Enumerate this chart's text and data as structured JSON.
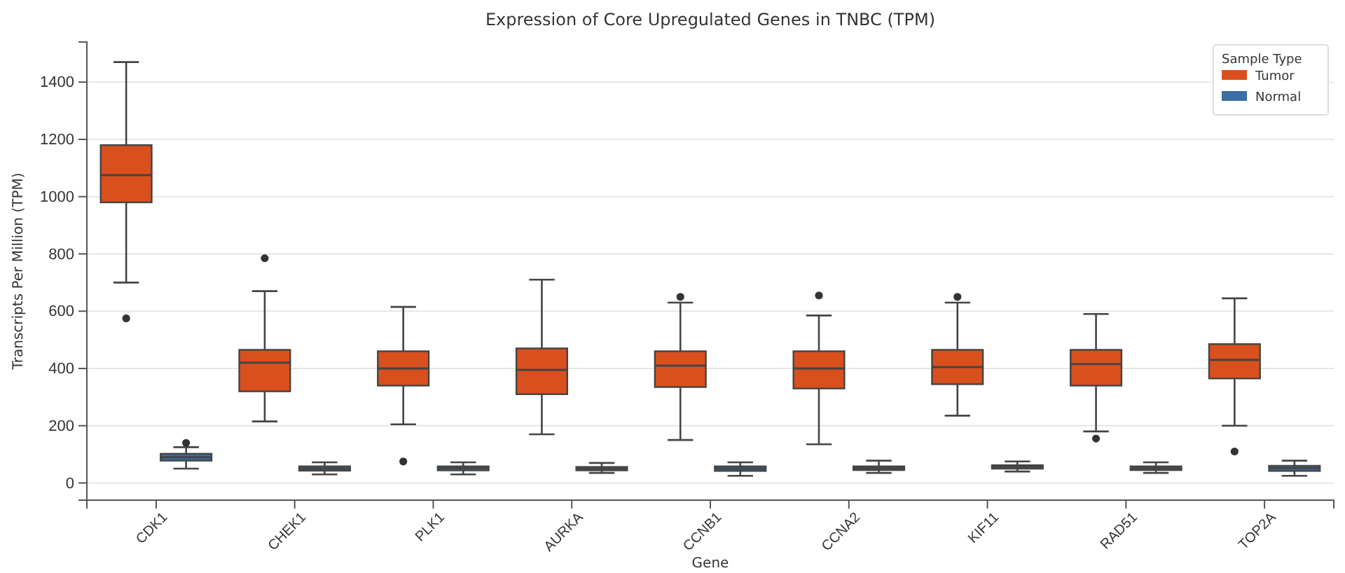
{
  "chart_data": {
    "type": "box",
    "title": "Expression of Core Upregulated Genes in TNBC (TPM)",
    "xlabel": "Gene",
    "ylabel": "Transcripts Per Million (TPM)",
    "legend_title": "Sample Type",
    "legend": "top right",
    "grid": "y",
    "categories": [
      "CDK1",
      "CHEK1",
      "PLK1",
      "AURKA",
      "CCNB1",
      "CCNA2",
      "KIF11",
      "RAD51",
      "TOP2A"
    ],
    "ylim": [
      -60,
      1540
    ],
    "yticks": [
      0,
      200,
      400,
      600,
      800,
      1000,
      1200,
      1400
    ],
    "series": [
      {
        "name": "Tumor",
        "color": "#d9501e",
        "boxes": [
          {
            "low": 700,
            "q1": 980,
            "median": 1075,
            "q3": 1180,
            "high": 1470,
            "outliers": [
              575
            ]
          },
          {
            "low": 215,
            "q1": 320,
            "median": 420,
            "q3": 465,
            "high": 670,
            "outliers": [
              785
            ]
          },
          {
            "low": 205,
            "q1": 340,
            "median": 400,
            "q3": 460,
            "high": 615,
            "outliers": [
              75
            ]
          },
          {
            "low": 170,
            "q1": 310,
            "median": 395,
            "q3": 470,
            "high": 710
          },
          {
            "low": 150,
            "q1": 335,
            "median": 410,
            "q3": 460,
            "high": 630,
            "outliers": [
              650
            ]
          },
          {
            "low": 135,
            "q1": 330,
            "median": 400,
            "q3": 460,
            "high": 585,
            "outliers": [
              655
            ]
          },
          {
            "low": 235,
            "q1": 345,
            "median": 405,
            "q3": 465,
            "high": 630,
            "outliers": [
              650
            ]
          },
          {
            "low": 180,
            "q1": 340,
            "median": 415,
            "q3": 465,
            "high": 590,
            "outliers": [
              155
            ]
          },
          {
            "low": 200,
            "q1": 365,
            "median": 430,
            "q3": 485,
            "high": 645,
            "outliers": [
              110
            ]
          }
        ]
      },
      {
        "name": "Normal",
        "color": "#3a6ea5",
        "boxes": [
          {
            "low": 50,
            "q1": 78,
            "median": 90,
            "q3": 102,
            "high": 125,
            "outliers": [
              140
            ]
          },
          {
            "low": 30,
            "q1": 43,
            "median": 50,
            "q3": 58,
            "high": 72
          },
          {
            "low": 30,
            "q1": 44,
            "median": 52,
            "q3": 58,
            "high": 72
          },
          {
            "low": 35,
            "q1": 44,
            "median": 50,
            "q3": 56,
            "high": 70
          },
          {
            "low": 25,
            "q1": 42,
            "median": 50,
            "q3": 58,
            "high": 72
          },
          {
            "low": 35,
            "q1": 45,
            "median": 52,
            "q3": 58,
            "high": 78
          },
          {
            "low": 40,
            "q1": 50,
            "median": 57,
            "q3": 62,
            "high": 75
          },
          {
            "low": 35,
            "q1": 45,
            "median": 52,
            "q3": 58,
            "high": 72
          },
          {
            "low": 25,
            "q1": 42,
            "median": 52,
            "q3": 60,
            "high": 78
          }
        ]
      }
    ]
  }
}
